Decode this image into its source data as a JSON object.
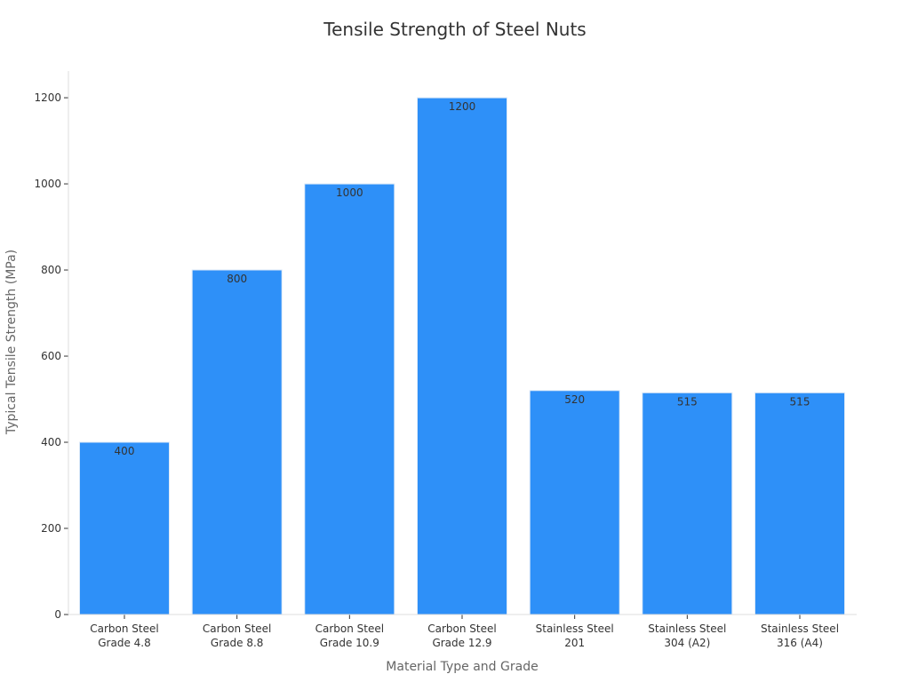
{
  "chart_data": {
    "type": "bar",
    "title": "Tensile Strength of Steel Nuts",
    "xlabel": "Material Type and Grade",
    "ylabel": "Typical Tensile Strength (MPa)",
    "categories": [
      [
        "Carbon Steel",
        "Grade 4.8"
      ],
      [
        "Carbon Steel",
        "Grade 8.8"
      ],
      [
        "Carbon Steel",
        "Grade 10.9"
      ],
      [
        "Carbon Steel",
        "Grade 12.9"
      ],
      [
        "Stainless Steel",
        "201"
      ],
      [
        "Stainless Steel",
        "304 (A2)"
      ],
      [
        "Stainless Steel",
        "316 (A4)"
      ]
    ],
    "values": [
      400,
      800,
      1000,
      1200,
      520,
      515,
      515
    ],
    "data_labels": [
      "400",
      "800",
      "1000",
      "1200",
      "520",
      "515",
      "515"
    ],
    "yticks": [
      0,
      200,
      400,
      600,
      800,
      1000,
      1200
    ],
    "ylim": [
      0,
      1262
    ],
    "bar_color": "#2e90f8",
    "bar_edge_color": "#dce9f7",
    "grid": false
  }
}
